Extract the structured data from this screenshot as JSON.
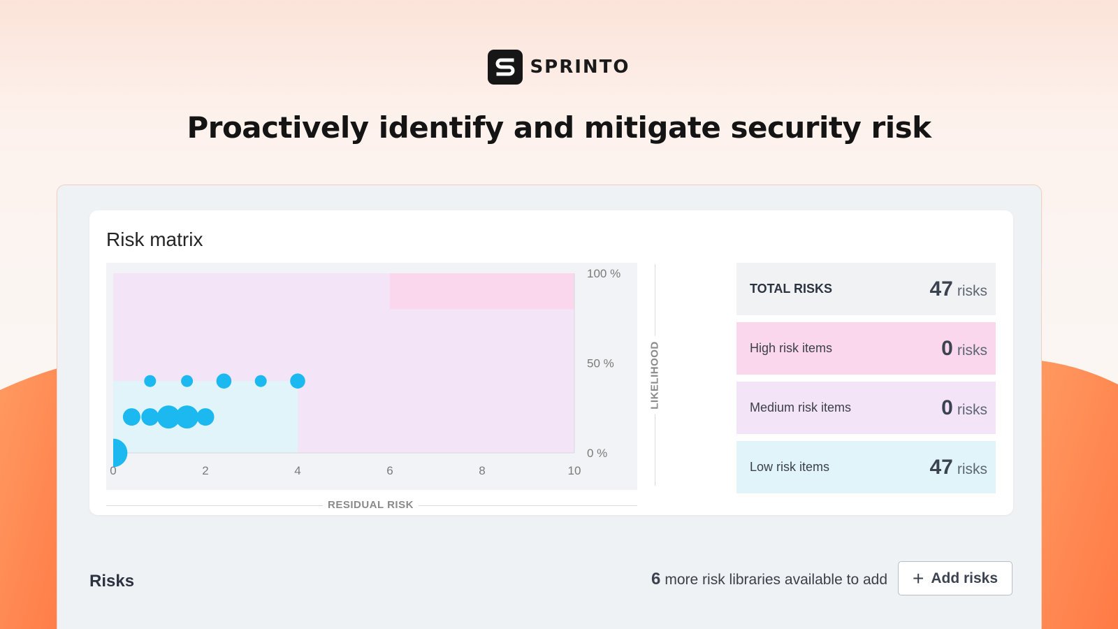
{
  "brand": {
    "logo_text": "SPRINTO",
    "logo_mark": "S"
  },
  "headline": "Proactively identify and mitigate security risk",
  "risk_matrix": {
    "title": "Risk matrix",
    "x_axis_label": "RESIDUAL RISK",
    "y_axis_label": "LIKELIHOOD",
    "x_ticks": [
      "0",
      "2",
      "4",
      "6",
      "8",
      "10"
    ],
    "y_ticks": [
      "100 %",
      "50 %",
      "0 %"
    ]
  },
  "summary": {
    "total": {
      "label": "TOTAL RISKS",
      "count": "47",
      "unit": "risks"
    },
    "high": {
      "label": "High risk items",
      "count": "0",
      "unit": "risks"
    },
    "medium": {
      "label": "Medium risk items",
      "count": "0",
      "unit": "risks"
    },
    "low": {
      "label": "Low risk items",
      "count": "47",
      "unit": "risks"
    }
  },
  "risks_section": {
    "title": "Risks",
    "libraries_count": "6",
    "libraries_text": "more risk libraries available to add",
    "add_button_label": "Add risks",
    "add_button_icon": "plus-icon"
  },
  "colors": {
    "accent_orange": "#ff8a4f",
    "bubble_blue": "#1cb8f0",
    "high_zone": "#fad7ec",
    "medium_zone": "#f4e4f8",
    "low_zone": "#e1f4fa"
  },
  "chart_data": {
    "type": "scatter",
    "xlabel": "RESIDUAL RISK",
    "ylabel": "LIKELIHOOD",
    "xlim": [
      0,
      10
    ],
    "ylim": [
      0,
      100
    ],
    "y_unit": "%",
    "zones": [
      {
        "name": "high",
        "x": [
          6,
          10
        ],
        "y": [
          80,
          100
        ]
      },
      {
        "name": "medium",
        "x": [
          0,
          10
        ],
        "y": [
          0,
          100
        ]
      },
      {
        "name": "low",
        "x": [
          0,
          4
        ],
        "y": [
          0,
          40
        ]
      }
    ],
    "points": [
      {
        "x": 0.8,
        "y": 40,
        "size": 1
      },
      {
        "x": 1.6,
        "y": 40,
        "size": 1
      },
      {
        "x": 2.4,
        "y": 40,
        "size": 2
      },
      {
        "x": 3.2,
        "y": 40,
        "size": 1
      },
      {
        "x": 4.0,
        "y": 40,
        "size": 2
      },
      {
        "x": 0.4,
        "y": 20,
        "size": 3
      },
      {
        "x": 0.8,
        "y": 20,
        "size": 3
      },
      {
        "x": 1.2,
        "y": 20,
        "size": 6
      },
      {
        "x": 1.6,
        "y": 20,
        "size": 6
      },
      {
        "x": 2.0,
        "y": 20,
        "size": 3
      },
      {
        "x": 0,
        "y": 0,
        "size": 10
      }
    ]
  }
}
